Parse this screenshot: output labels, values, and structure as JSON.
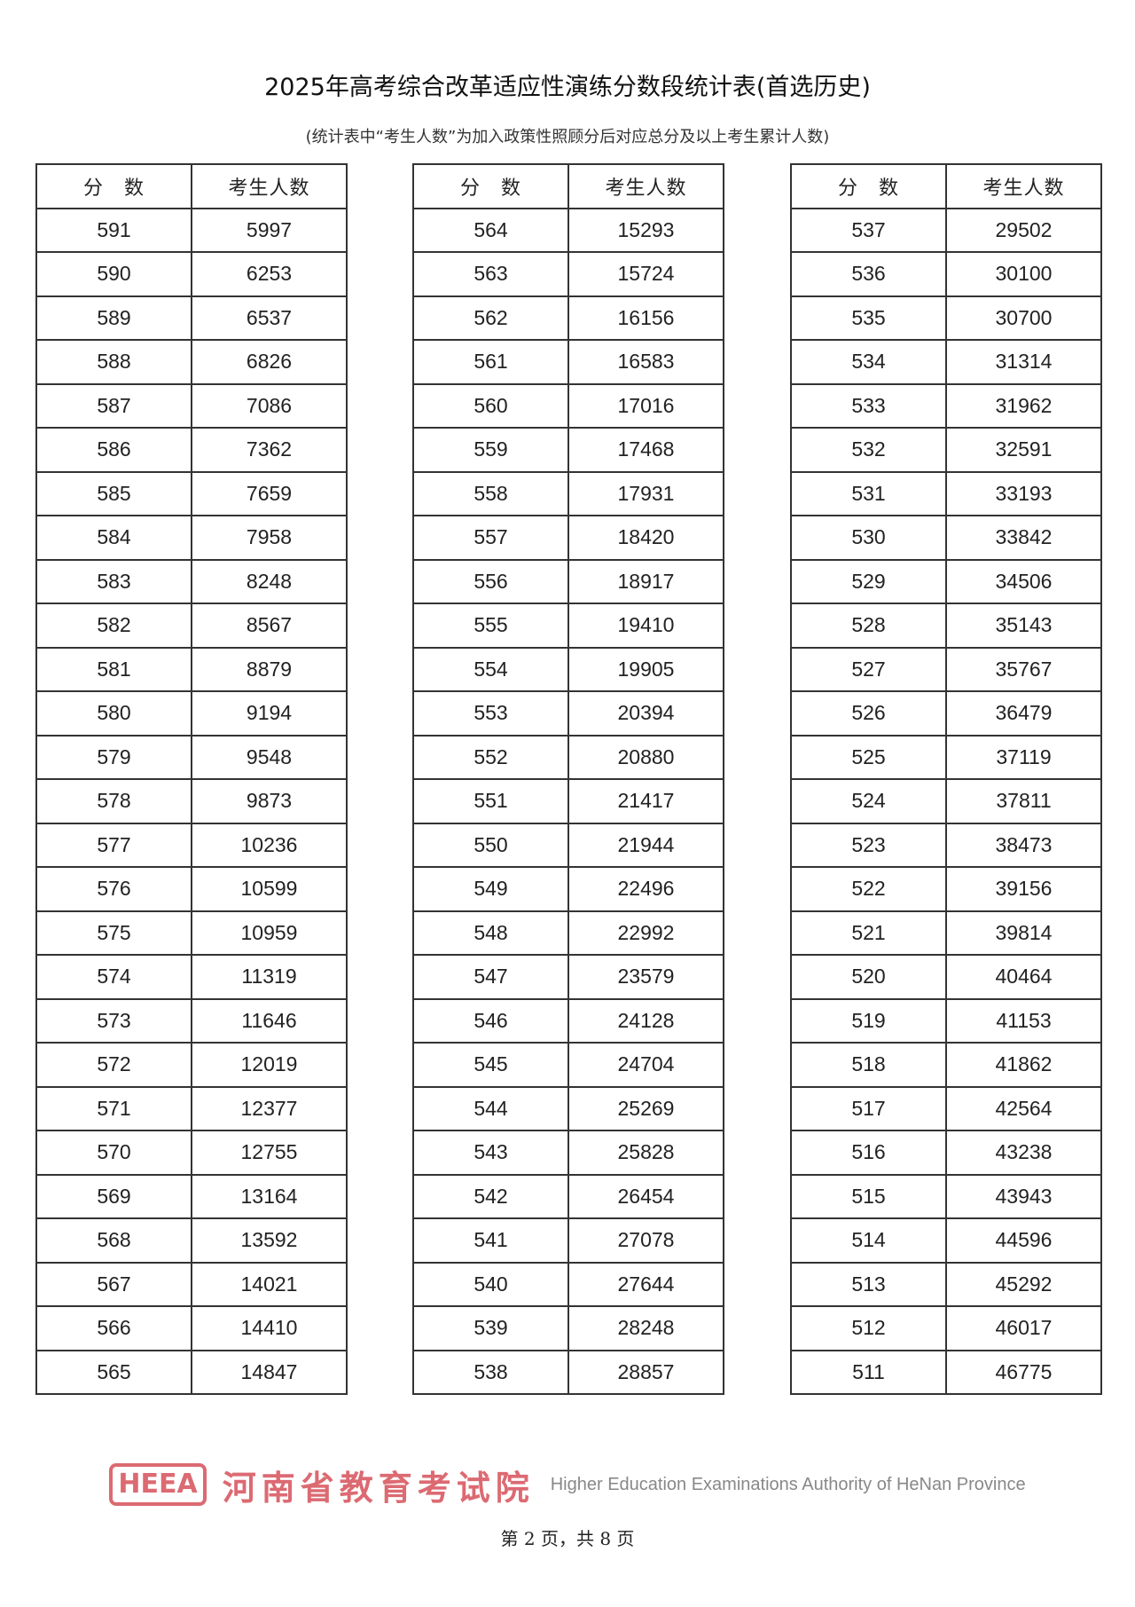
{
  "title": "2025年高考综合改革适应性演练分数段统计表(首选历史)",
  "subtitle": "(统计表中“考生人数”为加入政策性照顾分后对应总分及以上考生累计人数)",
  "table_headers": {
    "score": "分　数",
    "count": "考生人数"
  },
  "columns": [
    {
      "rows": [
        [
          "591",
          "5997"
        ],
        [
          "590",
          "6253"
        ],
        [
          "589",
          "6537"
        ],
        [
          "588",
          "6826"
        ],
        [
          "587",
          "7086"
        ],
        [
          "586",
          "7362"
        ],
        [
          "585",
          "7659"
        ],
        [
          "584",
          "7958"
        ],
        [
          "583",
          "8248"
        ],
        [
          "582",
          "8567"
        ],
        [
          "581",
          "8879"
        ],
        [
          "580",
          "9194"
        ],
        [
          "579",
          "9548"
        ],
        [
          "578",
          "9873"
        ],
        [
          "577",
          "10236"
        ],
        [
          "576",
          "10599"
        ],
        [
          "575",
          "10959"
        ],
        [
          "574",
          "11319"
        ],
        [
          "573",
          "11646"
        ],
        [
          "572",
          "12019"
        ],
        [
          "571",
          "12377"
        ],
        [
          "570",
          "12755"
        ],
        [
          "569",
          "13164"
        ],
        [
          "568",
          "13592"
        ],
        [
          "567",
          "14021"
        ],
        [
          "566",
          "14410"
        ],
        [
          "565",
          "14847"
        ]
      ]
    },
    {
      "rows": [
        [
          "564",
          "15293"
        ],
        [
          "563",
          "15724"
        ],
        [
          "562",
          "16156"
        ],
        [
          "561",
          "16583"
        ],
        [
          "560",
          "17016"
        ],
        [
          "559",
          "17468"
        ],
        [
          "558",
          "17931"
        ],
        [
          "557",
          "18420"
        ],
        [
          "556",
          "18917"
        ],
        [
          "555",
          "19410"
        ],
        [
          "554",
          "19905"
        ],
        [
          "553",
          "20394"
        ],
        [
          "552",
          "20880"
        ],
        [
          "551",
          "21417"
        ],
        [
          "550",
          "21944"
        ],
        [
          "549",
          "22496"
        ],
        [
          "548",
          "22992"
        ],
        [
          "547",
          "23579"
        ],
        [
          "546",
          "24128"
        ],
        [
          "545",
          "24704"
        ],
        [
          "544",
          "25269"
        ],
        [
          "543",
          "25828"
        ],
        [
          "542",
          "26454"
        ],
        [
          "541",
          "27078"
        ],
        [
          "540",
          "27644"
        ],
        [
          "539",
          "28248"
        ],
        [
          "538",
          "28857"
        ]
      ]
    },
    {
      "rows": [
        [
          "537",
          "29502"
        ],
        [
          "536",
          "30100"
        ],
        [
          "535",
          "30700"
        ],
        [
          "534",
          "31314"
        ],
        [
          "533",
          "31962"
        ],
        [
          "532",
          "32591"
        ],
        [
          "531",
          "33193"
        ],
        [
          "530",
          "33842"
        ],
        [
          "529",
          "34506"
        ],
        [
          "528",
          "35143"
        ],
        [
          "527",
          "35767"
        ],
        [
          "526",
          "36479"
        ],
        [
          "525",
          "37119"
        ],
        [
          "524",
          "37811"
        ],
        [
          "523",
          "38473"
        ],
        [
          "522",
          "39156"
        ],
        [
          "521",
          "39814"
        ],
        [
          "520",
          "40464"
        ],
        [
          "519",
          "41153"
        ],
        [
          "518",
          "41862"
        ],
        [
          "517",
          "42564"
        ],
        [
          "516",
          "43238"
        ],
        [
          "515",
          "43943"
        ],
        [
          "514",
          "44596"
        ],
        [
          "513",
          "45292"
        ],
        [
          "512",
          "46017"
        ],
        [
          "511",
          "46775"
        ]
      ]
    }
  ],
  "footer": "第 2 页，共 8 页",
  "watermark": {
    "logo": "HEEA",
    "cn": "河南省教育考试院",
    "en": "Higher Education Examinations Authority of HeNan Province",
    "color": "#dc505a"
  }
}
